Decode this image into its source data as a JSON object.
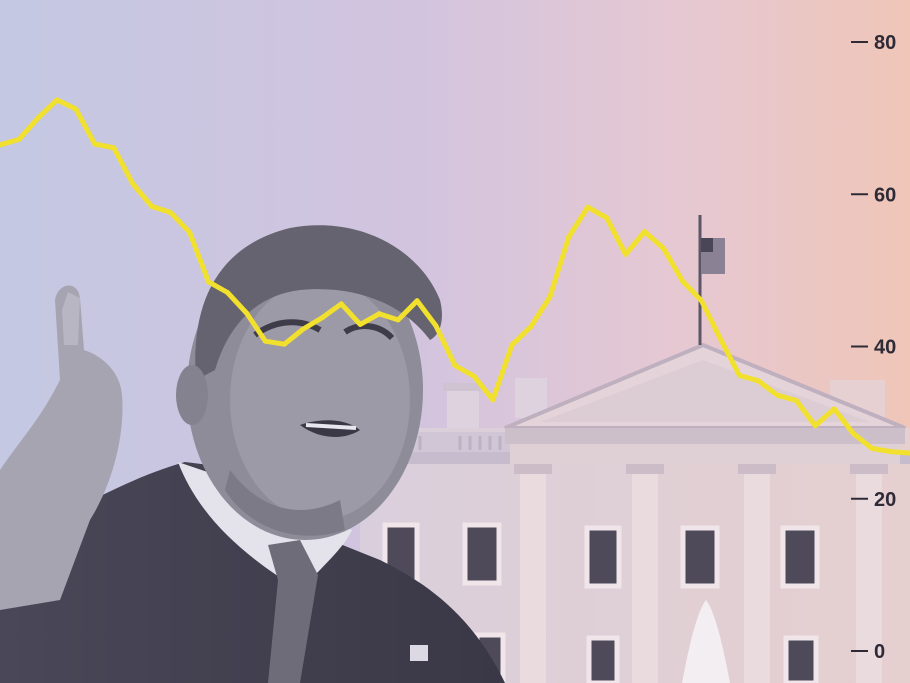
{
  "chart_data": {
    "type": "line",
    "title": "",
    "xlabel": "",
    "ylabel": "",
    "ylim": [
      0,
      85
    ],
    "y_ticks": [
      0,
      20,
      40,
      60,
      80
    ],
    "y_axis_position": "right",
    "grid": false,
    "legend": "none",
    "series": [
      {
        "color": "#f1e02d",
        "y": [
          66.5,
          67.2,
          70.0,
          72.4,
          71.2,
          66.6,
          66.1,
          61.4,
          58.4,
          57.6,
          55.0,
          48.5,
          47.1,
          44.4,
          40.7,
          40.3,
          42.3,
          43.8,
          45.6,
          42.9,
          44.3,
          43.5,
          46.0,
          42.7,
          37.5,
          36.1,
          33.0,
          40.2,
          42.6,
          46.5,
          54.4,
          58.3,
          56.9,
          52.1,
          55.1,
          52.9,
          48.6,
          46.0,
          41.0,
          36.2,
          35.5,
          33.6,
          32.9,
          29.6,
          31.8,
          28.6,
          26.6,
          26.2,
          26.0
        ]
      }
    ]
  },
  "scene": {
    "background_gradient": [
      "#c4c8e2",
      "#d2c4df",
      "#e6c8d2",
      "#efc6b8"
    ],
    "photo_subjects": [
      "man-pointing-finger",
      "white-house-building",
      "us-flag",
      "fountain"
    ]
  }
}
